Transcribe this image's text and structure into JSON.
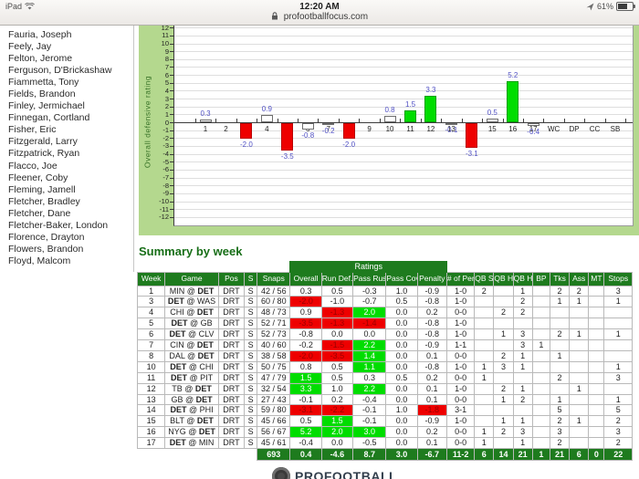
{
  "status_bar": {
    "carrier": "iPad",
    "time": "12:20 AM",
    "url": "profootballfocus.com",
    "battery_percent": "61%"
  },
  "sidebar": {
    "players": [
      "Fauria, Joseph",
      "Feely, Jay",
      "Felton, Jerome",
      "Ferguson, D'Brickashaw",
      "Fiammetta, Tony",
      "Fields, Brandon",
      "Finley, Jermichael",
      "Finnegan, Cortland",
      "Fisher, Eric",
      "Fitzgerald, Larry",
      "Fitzpatrick, Ryan",
      "Flacco, Joe",
      "Fleener, Coby",
      "Fleming, Jamell",
      "Fletcher, Bradley",
      "Fletcher, Dane",
      "Fletcher-Baker, London",
      "Florence, Drayton",
      "Flowers, Brandon",
      "Floyd, Malcom"
    ]
  },
  "chart_data": {
    "type": "bar",
    "title": "",
    "xlabel": "",
    "ylabel": "Overall defensive rating",
    "ylim": [
      -12,
      12
    ],
    "grid": true,
    "categories": [
      "1",
      "2",
      "3",
      "4",
      "5",
      "6",
      "7",
      "8",
      "9",
      "10",
      "11",
      "12",
      "13",
      "14",
      "15",
      "16",
      "17",
      "WC",
      "DP",
      "CC",
      "SB"
    ],
    "values": [
      0.3,
      null,
      -2.0,
      0.9,
      -3.5,
      -0.8,
      -0.2,
      -2.0,
      null,
      0.8,
      1.5,
      3.3,
      -0.1,
      -3.1,
      0.5,
      5.2,
      -0.4,
      null,
      null,
      null,
      null
    ],
    "color_rule": {
      "green_if_above": 1.0,
      "red_if_below": -1.0,
      "else": "white"
    },
    "colors": {
      "positive": "#00dd00",
      "negative": "#ee0000",
      "neutral": "#ffffff"
    }
  },
  "summary": {
    "title": "Summary by week",
    "ratings_band_label": "Ratings",
    "columns": [
      "Week",
      "Game",
      "Pos",
      "S",
      "Snaps",
      "Overall",
      "Run Def.",
      "Pass Rush",
      "Pass Cov.",
      "Penalty",
      "# of Pen",
      "QB Sk",
      "QB Ht",
      "QB Hu",
      "BP",
      "Tks",
      "Ass",
      "MT",
      "Stops"
    ],
    "bold_team": "DET",
    "rows": [
      [
        "1",
        "MIN @ DET",
        "DRT",
        "S",
        "42 / 56",
        "0.3",
        "0.5",
        "-0.3",
        "1.0",
        "-0.9",
        "1-0",
        "2",
        "",
        "1",
        "",
        "2",
        "2",
        "",
        "3"
      ],
      [
        "3",
        "DET @ WAS",
        "DRT",
        "S",
        "60 / 80",
        "-2.0",
        "-1.0",
        "-0.7",
        "0.5",
        "-0.8",
        "1-0",
        "",
        "",
        "2",
        "",
        "1",
        "1",
        "",
        "1"
      ],
      [
        "4",
        "CHI @ DET",
        "DRT",
        "S",
        "48 / 73",
        "0.9",
        "-1.3",
        "2.0",
        "0.0",
        "0.2",
        "0-0",
        "",
        "2",
        "2",
        "",
        "",
        "",
        "",
        ""
      ],
      [
        "5",
        "DET @ GB",
        "DRT",
        "S",
        "52 / 71",
        "-3.5",
        "-1.3",
        "-1.4",
        "0.0",
        "-0.8",
        "1-0",
        "",
        "",
        "",
        "",
        "",
        "",
        "",
        ""
      ],
      [
        "6",
        "DET @ CLV",
        "DRT",
        "S",
        "52 / 73",
        "-0.8",
        "0.0",
        "0.0",
        "0.0",
        "-0.8",
        "1-0",
        "",
        "1",
        "3",
        "",
        "2",
        "1",
        "",
        "1"
      ],
      [
        "7",
        "CIN @ DET",
        "DRT",
        "S",
        "40 / 60",
        "-0.2",
        "-1.5",
        "2.2",
        "0.0",
        "-0.9",
        "1-1",
        "",
        "",
        "3",
        "1",
        "",
        "",
        "",
        ""
      ],
      [
        "8",
        "DAL @ DET",
        "DRT",
        "S",
        "38 / 58",
        "-2.0",
        "-3.5",
        "1.4",
        "0.0",
        "0.1",
        "0-0",
        "",
        "2",
        "1",
        "",
        "1",
        "",
        "",
        ""
      ],
      [
        "10",
        "DET @ CHI",
        "DRT",
        "S",
        "50 / 75",
        "0.8",
        "0.5",
        "1.1",
        "0.0",
        "-0.8",
        "1-0",
        "1",
        "3",
        "1",
        "",
        "",
        "",
        "",
        "1"
      ],
      [
        "11",
        "DET @ PIT",
        "DRT",
        "S",
        "47 / 79",
        "1.5",
        "0.5",
        "0.3",
        "0.5",
        "0.2",
        "0-0",
        "1",
        "",
        "",
        "",
        "2",
        "",
        "",
        "3"
      ],
      [
        "12",
        "TB @ DET",
        "DRT",
        "S",
        "32 / 54",
        "3.3",
        "1.0",
        "2.2",
        "0.0",
        "0.1",
        "1-0",
        "",
        "2",
        "1",
        "",
        "",
        "1",
        "",
        ""
      ],
      [
        "13",
        "GB @ DET",
        "DRT",
        "S",
        "27 / 43",
        "-0.1",
        "0.2",
        "-0.4",
        "0.0",
        "0.1",
        "0-0",
        "",
        "1",
        "2",
        "",
        "1",
        "",
        "",
        "1"
      ],
      [
        "14",
        "DET @ PHI",
        "DRT",
        "S",
        "59 / 80",
        "-3.1",
        "-2.2",
        "-0.1",
        "1.0",
        "-1.8",
        "3-1",
        "",
        "",
        "",
        "",
        "5",
        "",
        "",
        "5"
      ],
      [
        "15",
        "BLT @ DET",
        "DRT",
        "S",
        "45 / 66",
        "0.5",
        "1.5",
        "-0.1",
        "0.0",
        "-0.9",
        "1-0",
        "",
        "1",
        "1",
        "",
        "2",
        "1",
        "",
        "2"
      ],
      [
        "16",
        "NYG @ DET",
        "DRT",
        "S",
        "56 / 67",
        "5.2",
        "2.0",
        "3.0",
        "0.0",
        "0.2",
        "0-0",
        "1",
        "2",
        "3",
        "",
        "3",
        "",
        "",
        "3"
      ],
      [
        "17",
        "DET @ MIN",
        "DRT",
        "S",
        "45 / 61",
        "-0.4",
        "0.0",
        "-0.5",
        "0.0",
        "0.1",
        "0-0",
        "1",
        "",
        "1",
        "",
        "2",
        "",
        "",
        "2"
      ]
    ],
    "totals": [
      "",
      "",
      "",
      "",
      "693",
      "0.4",
      "-4.6",
      "8.7",
      "3.0",
      "-6.7",
      "11-2",
      "6",
      "14",
      "21",
      "1",
      "21",
      "6",
      "0",
      "22"
    ]
  },
  "logo": {
    "text": "PROFOOTBALL"
  }
}
